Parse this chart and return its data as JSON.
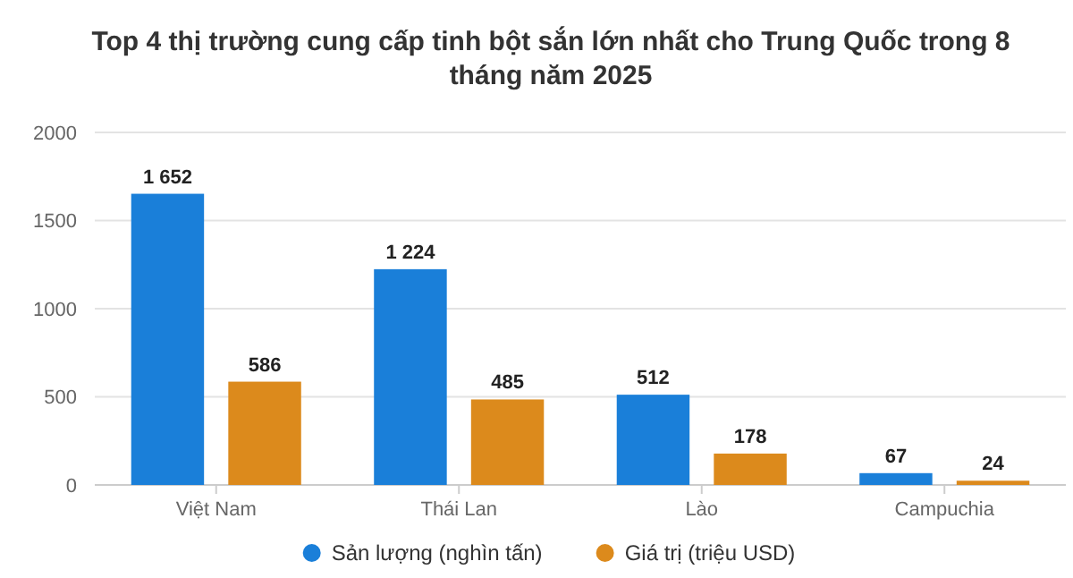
{
  "chart_data": {
    "type": "bar",
    "title": "Top 4 thị trường cung cấp tinh bột sắn lớn nhất cho Trung Quốc trong 8 tháng năm 2025",
    "categories": [
      "Việt Nam",
      "Thái Lan",
      "Lào",
      "Campuchia"
    ],
    "series": [
      {
        "name": "Sản lượng (nghìn tấn)",
        "color": "#1a7fd9",
        "values": [
          1652,
          1224,
          512,
          67
        ],
        "value_labels": [
          "1 652",
          "1 224",
          "512",
          "67"
        ]
      },
      {
        "name": "Giá trị (triệu USD)",
        "color": "#dc8a1c",
        "values": [
          586,
          485,
          178,
          24
        ],
        "value_labels": [
          "586",
          "485",
          "178",
          "24"
        ]
      }
    ],
    "ylim": [
      0,
      2000
    ],
    "yticks": [
      0,
      500,
      1000,
      1500,
      2000
    ],
    "grid": "y",
    "legend": "bottom"
  }
}
